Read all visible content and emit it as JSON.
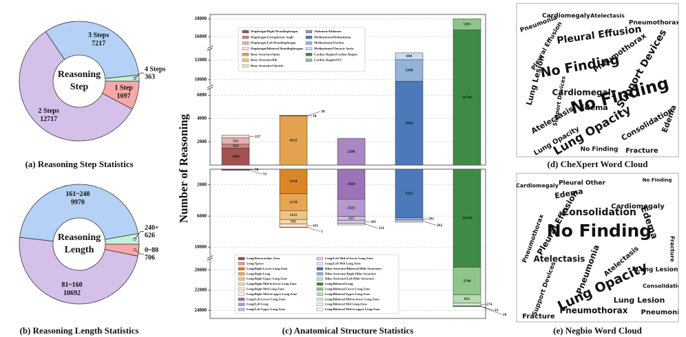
{
  "chart_data": [
    {
      "type": "pie",
      "caption": "(a) Reasoning Step Statistics",
      "center_label": [
        "Reasoning",
        "Step"
      ],
      "categories": [
        "1 Step",
        "2 Steps",
        "3 Steps",
        "4 Steps"
      ],
      "values": [
        1697,
        12717,
        7217,
        363
      ],
      "colors": [
        "#f7a9a9",
        "#d5c0ea",
        "#b5d1f5",
        "#c8eed8"
      ]
    },
    {
      "type": "pie",
      "caption": "(b) Reasoning Length Statistics",
      "center_label": [
        "Reasoning",
        "Length"
      ],
      "categories": [
        "0~80",
        "81~160",
        "161~240",
        "240+"
      ],
      "values": [
        706,
        10692,
        9970,
        626
      ],
      "colors": [
        "#f7a9a9",
        "#d5c0ea",
        "#b5d1f5",
        "#c8eed8"
      ]
    },
    {
      "type": "bar",
      "stacked": true,
      "ylabel": "Number of Reasoning",
      "caption": "(c) Anatomical Structure Statistics",
      "categories": [
        null,
        null,
        null,
        null,
        null
      ],
      "ylim": [
        0,
        18500
      ],
      "yticks": [
        2000,
        4000,
        6000,
        10000,
        12000,
        16000,
        18000
      ],
      "y_segments": [
        [
          0,
          6500
        ],
        [
          9500,
          13000
        ],
        [
          15000,
          18500
        ]
      ],
      "grid": true,
      "series": [
        {
          "name": "Diaphragm/Right Hemidiaphragm",
          "color": "#a3524f",
          "values": [
            1460,
            null,
            null,
            null,
            null
          ]
        },
        {
          "name": "Diaphragm/Costophrenic Angle",
          "color": "#c98381",
          "values": [
            334,
            null,
            null,
            null,
            null
          ]
        },
        {
          "name": "Diaphragm/Left Hemidiaphragm",
          "color": "#e4b3b1",
          "values": [
            532,
            null,
            null,
            null,
            null
          ]
        },
        {
          "name": "Diaphragm/Bilateral Hemidiaphragms",
          "color": "#f5dedd",
          "values": [
            237,
            null,
            null,
            null,
            null
          ]
        },
        {
          "name": "Bony Structure/Spine",
          "color": "#e4a150",
          "values": [
            null,
            4215,
            null,
            null,
            null
          ]
        },
        {
          "name": "Bony Structure/Rib",
          "color": "#f1c484",
          "values": [
            null,
            18,
            null,
            null,
            null
          ]
        },
        {
          "name": "Bony Structure/Clavicle",
          "color": "#f8e0bc",
          "values": [
            null,
            38,
            null,
            null,
            null
          ]
        },
        {
          "name": "Abdomen/Abdomen",
          "color": "#a987c2",
          "values": [
            null,
            null,
            2298,
            null,
            null
          ]
        },
        {
          "name": "Mediastinum/Mediastinum",
          "color": "#4b79b9",
          "values": [
            null,
            null,
            null,
            9844,
            null
          ]
        },
        {
          "name": "Mediastinum/Trachea",
          "color": "#93b3da",
          "values": [
            null,
            null,
            null,
            2188,
            null
          ]
        },
        {
          "name": "Mediastinum/Thoracic Aorta",
          "color": "#c9dbf0",
          "values": [
            null,
            null,
            null,
            694,
            null
          ]
        },
        {
          "name": "Cardiac Region/Cardiac Region",
          "color": "#3f8b45",
          "values": [
            null,
            null,
            null,
            null,
            16749
          ]
        },
        {
          "name": "Cardiac Region/SVC",
          "color": "#8dc58b",
          "values": [
            null,
            null,
            null,
            null,
            1261
          ]
        }
      ]
    },
    {
      "type": "bar",
      "stacked": true,
      "y_inverted": true,
      "categories": [
        null,
        null,
        null,
        null,
        null
      ],
      "ylim": [
        0,
        24800
      ],
      "yticks": [
        2000,
        6000,
        10000,
        20000,
        22000,
        24000
      ],
      "y_segments": [
        [
          0,
          11000
        ],
        [
          19000,
          24800
        ]
      ],
      "grid": true,
      "series": [
        {
          "name": "Lung/Retrocardiac Area",
          "color": "#9c4f4d",
          "values": [
            90,
            null,
            null,
            null,
            null
          ]
        },
        {
          "name": "Lung/Apices",
          "color": "#d99f9d",
          "values": [
            51,
            null,
            null,
            null,
            null
          ]
        },
        {
          "name": "Lung/Right Lower Lung Zone",
          "color": "#d98626",
          "values": [
            null,
            3134,
            null,
            null,
            null
          ]
        },
        {
          "name": "Lung/Right Lung",
          "color": "#e8a552",
          "values": [
            null,
            2178,
            null,
            null,
            null
          ]
        },
        {
          "name": "Lung/Right Upper Lung Zone",
          "color": "#f2c482",
          "values": [
            null,
            1121,
            null,
            null,
            null
          ]
        },
        {
          "name": "Lung/Right Mid-to-lower Lung Zone",
          "color": "#f6d7aa",
          "values": [
            null,
            591,
            null,
            null,
            null
          ]
        },
        {
          "name": "Lung/Right Mid Lung Zone",
          "color": "#fae6ca",
          "values": [
            null,
            411,
            null,
            null,
            null
          ]
        },
        {
          "name": "Lung/Right Mid-to-upper Lung Zone",
          "color": "#fdf2e2",
          "values": [
            null,
            5,
            null,
            null,
            null
          ]
        },
        {
          "name": "Lung/Left Lower Lung Zone",
          "color": "#9b73b6",
          "values": [
            null,
            null,
            3818,
            null,
            null
          ]
        },
        {
          "name": "Lung/Left Lung",
          "color": "#b698cd",
          "values": [
            null,
            null,
            2221,
            null,
            null
          ]
        },
        {
          "name": "Lung/Left Upper Lung Zone",
          "color": "#cdb8df",
          "values": [
            null,
            null,
            515,
            null,
            null
          ]
        },
        {
          "name": "Lung/Left Mid-to-lower Lung Zone",
          "color": "#ddcde9",
          "values": [
            null,
            null,
            365,
            null,
            null
          ]
        },
        {
          "name": "Lung/Left Mid Lung Zone",
          "color": "#ece2f3",
          "values": [
            null,
            null,
            211,
            null,
            null
          ]
        },
        {
          "name": "Hilar Structure/Bilateral Hilar Structures",
          "color": "#4b79b9",
          "values": [
            null,
            null,
            null,
            6222,
            null
          ]
        },
        {
          "name": "Hilar Structure/Right Hilar Structure",
          "color": "#90b1d9",
          "values": [
            null,
            null,
            null,
            291,
            null
          ]
        },
        {
          "name": "Hilar Structure/Left Hilar Structure",
          "color": "#c7d9ef",
          "values": [
            null,
            null,
            null,
            262,
            null
          ]
        },
        {
          "name": "Lung/Bilateral Lung",
          "color": "#3f8b45",
          "values": [
            null,
            null,
            null,
            null,
            19720
          ]
        },
        {
          "name": "Lung/Bilateral Lower Lung Zone",
          "color": "#8dc58b",
          "values": [
            null,
            null,
            null,
            null,
            2744
          ]
        },
        {
          "name": "Lung/Bilateral Upper Lung Zone",
          "color": "#b8ddb5",
          "values": [
            null,
            null,
            null,
            null,
            822
          ]
        },
        {
          "name": "Lung/Bilateral Mid-to-lower Lung Zone",
          "color": "#d4ebd1",
          "values": [
            null,
            null,
            null,
            null,
            274
          ]
        },
        {
          "name": "Lung/Bilateral Mid Lung Zone",
          "color": "#e5f3e3",
          "values": [
            null,
            null,
            null,
            null,
            43
          ]
        },
        {
          "name": "Lung/Bilateral Mid-to-upper Lung Zone",
          "color": "#f3faf2",
          "values": [
            null,
            null,
            null,
            null,
            10
          ]
        }
      ]
    },
    {
      "type": "wordcloud",
      "caption": "(d) CheXpert Word Cloud",
      "words": [
        "Pleural Effusion",
        "Support Devices",
        "No Finding",
        "No Finding",
        "Lung Lesion",
        "Cardiomegaly",
        "Edema",
        "Pneumothorax",
        "Lung Opacity",
        "Atelectasis",
        "Consolidation",
        "Edema",
        "Fracture",
        "Pneumonia",
        "No Finding",
        "Lung Opacity",
        "Pleural Effusion",
        "Pneumothorax",
        "Support Devices",
        "Cardiomegaly",
        "Atelectasis"
      ]
    },
    {
      "type": "wordcloud",
      "caption": "(e) Negbio Word Cloud",
      "words": [
        "No Finding",
        "Lung Opacity",
        "Consolidation",
        "Pleural Effusion",
        "Edema",
        "Atelectasis",
        "Pneumonia",
        "Pneumothorax",
        "Cardiomegaly",
        "Lung Lesion",
        "Fracture",
        "Pleural Other",
        "Support Devices",
        "Edema",
        "Pneumothorax",
        "Cardiomegaly",
        "Lung Lesion",
        "Atelectasis",
        "Consolidation",
        "Pneumonia",
        "No Finding",
        "Fracture"
      ]
    }
  ]
}
